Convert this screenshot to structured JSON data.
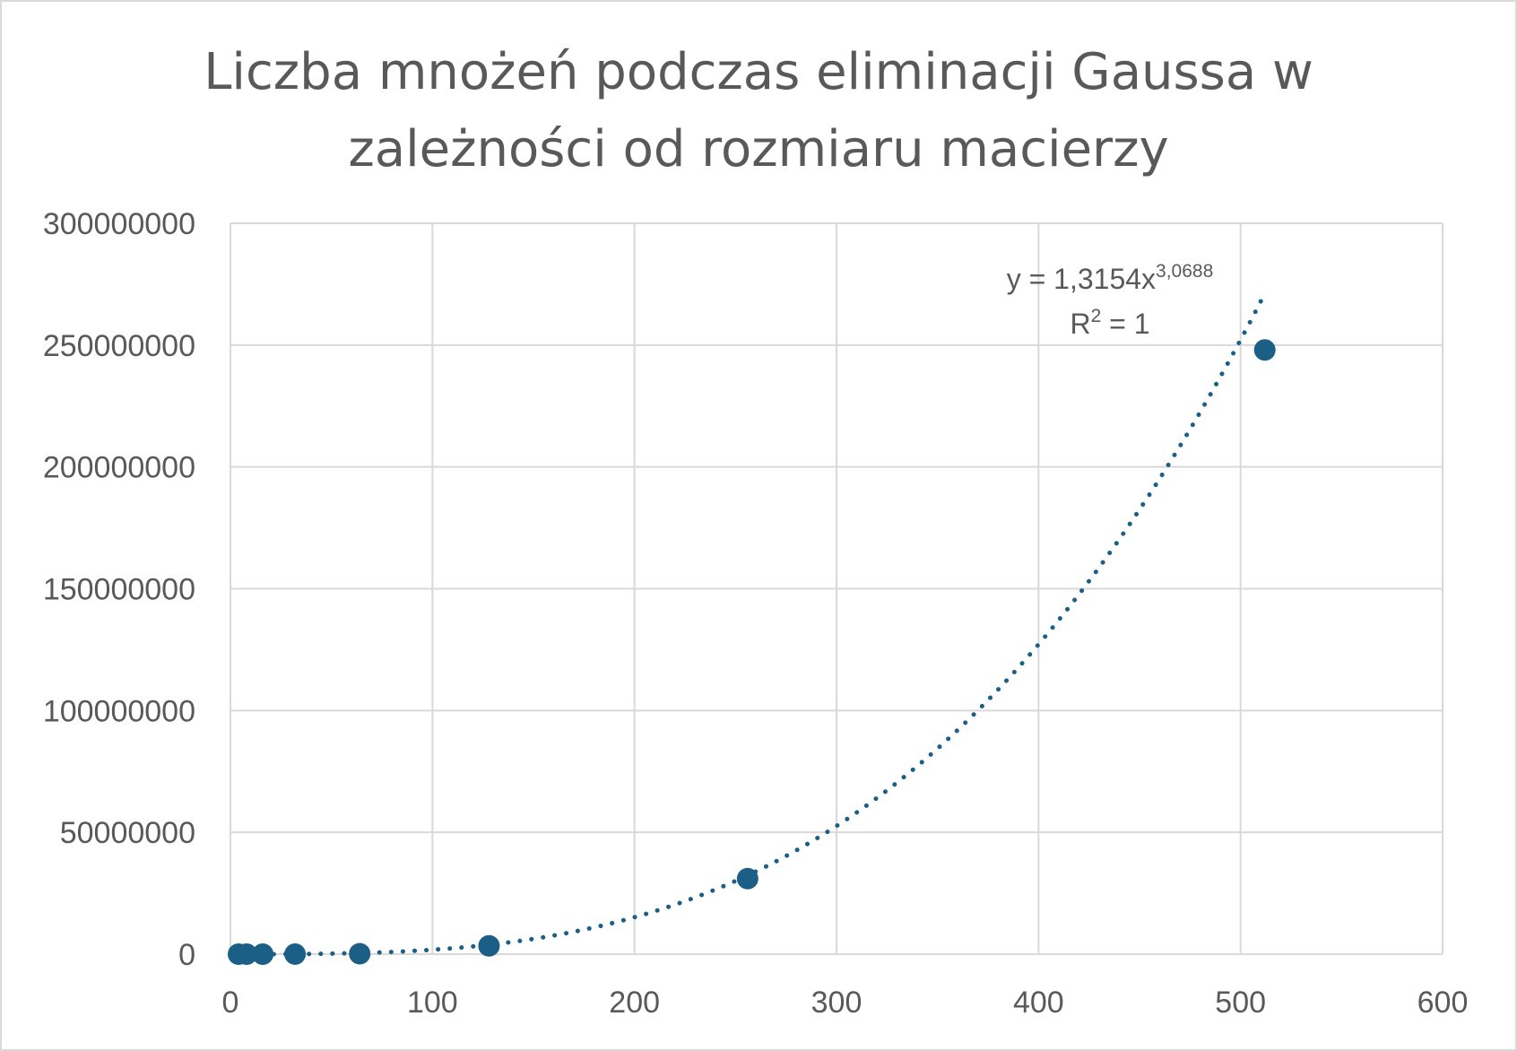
{
  "chart_data": {
    "type": "scatter",
    "title_lines": [
      "Liczba mnożeń podczas eliminacji Gaussa w",
      "zależności od rozmiaru macierzy"
    ],
    "xlabel": "",
    "ylabel": "",
    "xlim": [
      0,
      600
    ],
    "ylim": [
      0,
      300000000
    ],
    "x_ticks": [
      0,
      100,
      200,
      300,
      400,
      500,
      600
    ],
    "y_ticks": [
      0,
      50000000,
      100000000,
      150000000,
      200000000,
      250000000,
      300000000
    ],
    "grid": true,
    "legend": "none",
    "marker_color": "#1b5e86",
    "series": [
      {
        "x": [
          4,
          8,
          16,
          32,
          64,
          128,
          256,
          512
        ],
        "y": [
          40,
          336,
          2720,
          21856,
          174720,
          3400000,
          31000000,
          248000000
        ]
      }
    ],
    "trendline": {
      "type": "power",
      "coefficient": 1.3154,
      "exponent": 3.0688,
      "x_range": [
        4,
        512
      ],
      "style": "dotted",
      "color": "#1b5e86",
      "equation_text": {
        "prefix": "y = 1,3154x",
        "exponent": "3,0688",
        "r_label": "R",
        "r_exp": "2",
        "r_value": " = 1"
      }
    }
  }
}
